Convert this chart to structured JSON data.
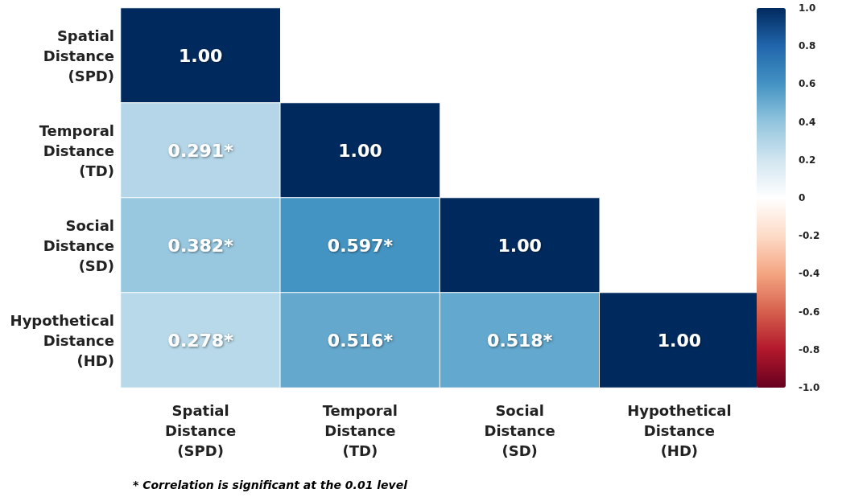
{
  "chart_data": {
    "type": "heatmap",
    "categories": [
      "Spatial Distance (SPD)",
      "Temporal Distance (TD)",
      "Social Distance (SD)",
      "Hypothetical Distance (HD)"
    ],
    "y_categories": [
      "Spatial Distance (SPD)",
      "Temporal Distance (TD)",
      "Social Distance (SD)",
      "Hypothetical Distance (HD)"
    ],
    "cells": [
      [
        1,
        null,
        null,
        null
      ],
      [
        0.291,
        1,
        null,
        null
      ],
      [
        0.382,
        0.597,
        1,
        null
      ],
      [
        0.278,
        0.516,
        0.518,
        1
      ]
    ],
    "cell_labels": [
      [
        "1.00",
        null,
        null,
        null
      ],
      [
        "0.291*",
        "1.00",
        null,
        null
      ],
      [
        "0.382*",
        "0.597*",
        "1.00",
        null
      ],
      [
        "0.278*",
        "0.516*",
        "0.518*",
        "1.00"
      ]
    ],
    "clim": [
      -1,
      1
    ],
    "cticks": [
      {
        "value": 1,
        "label": "1.0"
      },
      0.8,
      0.6,
      0.4,
      0.2,
      0,
      -0.2,
      -0.4,
      -0.6,
      -0.8,
      {
        "value": -1,
        "label": "-1.0"
      }
    ],
    "annotations": [
      "* Correlation is significant at the 0.01 level"
    ]
  }
}
